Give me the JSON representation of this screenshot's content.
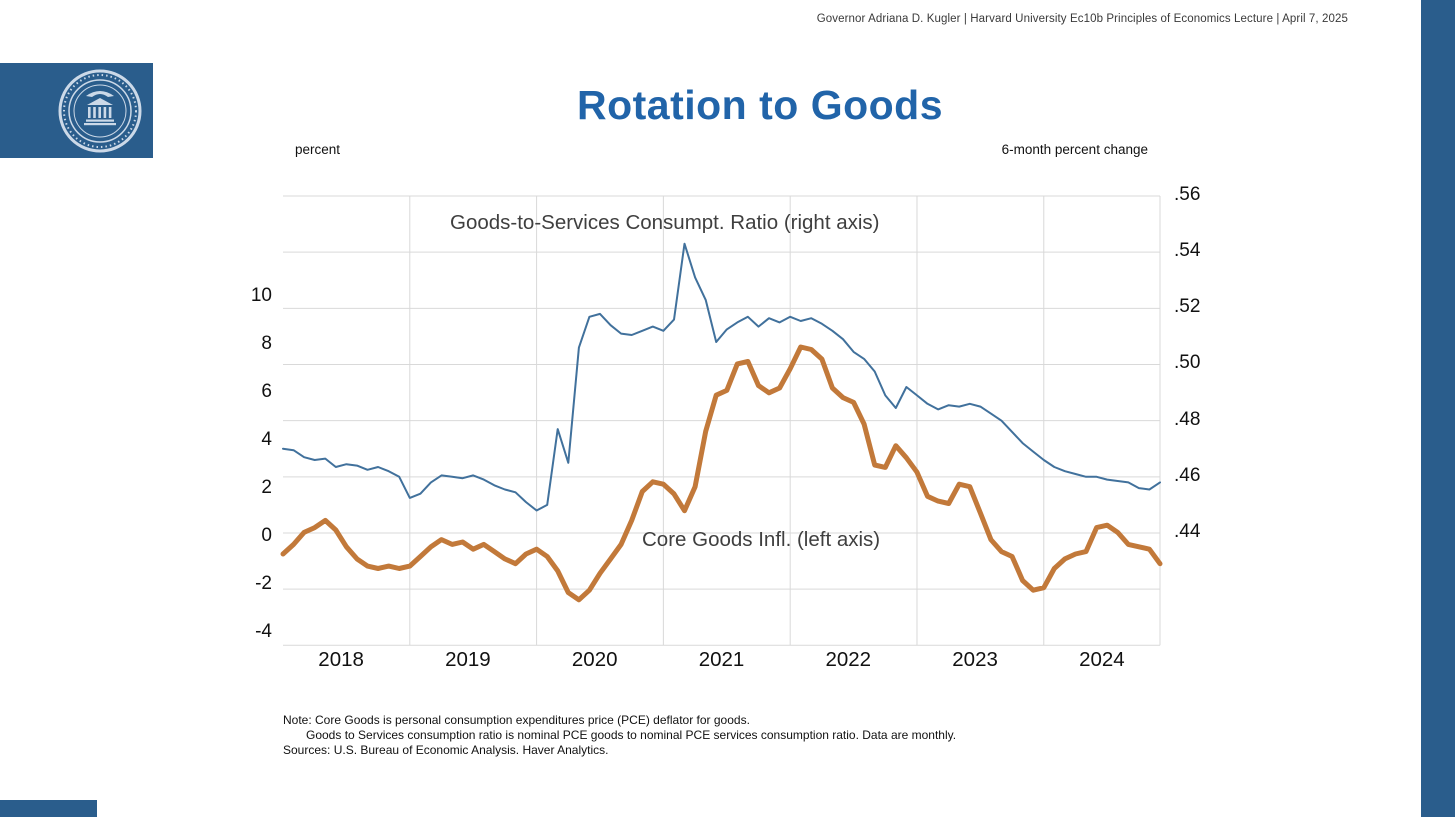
{
  "header": {
    "attribution": "Governor Adriana D. Kugler | Harvard University Ec10b Principles of Economics Lecture | April 7, 2025"
  },
  "title": "Rotation to Goods",
  "annotations": {
    "ratio_label": "Goods-to-Services  Consumpt. Ratio (right axis)",
    "core_label": "Core Goods Infl. (left axis)"
  },
  "notes": {
    "line1": "Note: Core Goods is personal consumption expenditures price (PCE) deflator for goods.",
    "line2": "Goods to Services consumption ratio is nominal PCE goods to nominal PCE services consumption ratio. Data are monthly.",
    "line3": "Sources: U.S. Bureau of Economic Analysis. Haver Analytics."
  },
  "colors": {
    "title_blue": "#2164a9",
    "fed_blue": "#2a5d8c",
    "ratio_line": "#41719c",
    "core_line": "#c2793a",
    "grid": "#d9d9d9"
  },
  "chart_data": {
    "type": "line",
    "title": "Rotation to Goods",
    "frequency": "monthly",
    "x_start": "2018-01",
    "x_year_labels": [
      "2018",
      "2019",
      "2020",
      "2021",
      "2022",
      "2023",
      "2024"
    ],
    "grid": true,
    "grid_color": "#d9d9d9",
    "left_axis": {
      "label": "percent",
      "ticks": [
        10,
        8,
        6,
        4,
        2,
        0,
        -2,
        -4
      ],
      "range": [
        -4,
        12
      ]
    },
    "right_axis": {
      "label": "6-month percent change",
      "ticks": [
        ".56",
        ".54",
        ".52",
        ".50",
        ".48",
        ".46",
        ".44"
      ],
      "range": [
        0.4,
        0.56
      ]
    },
    "series": [
      {
        "name": "Goods-to-Services Consumpt. Ratio (right axis)",
        "axis": "right",
        "color": "#41719c",
        "width": 2,
        "values": [
          0.47,
          0.4695,
          0.467,
          0.466,
          0.4665,
          0.4635,
          0.4645,
          0.464,
          0.4625,
          0.4635,
          0.462,
          0.46,
          0.4525,
          0.454,
          0.458,
          0.4605,
          0.46,
          0.4595,
          0.4605,
          0.459,
          0.457,
          0.4555,
          0.4545,
          0.451,
          0.448,
          0.45,
          0.477,
          0.465,
          0.506,
          0.517,
          0.518,
          0.514,
          0.511,
          0.5105,
          0.512,
          0.5135,
          0.512,
          0.516,
          0.543,
          0.531,
          0.523,
          0.508,
          0.5125,
          0.515,
          0.517,
          0.5135,
          0.5165,
          0.515,
          0.517,
          0.5155,
          0.5165,
          0.5145,
          0.512,
          0.509,
          0.5045,
          0.502,
          0.4975,
          0.489,
          0.4845,
          0.492,
          0.489,
          0.486,
          0.484,
          0.4855,
          0.485,
          0.486,
          0.485,
          0.4825,
          0.48,
          0.476,
          0.472,
          0.469,
          0.466,
          0.4635,
          0.462,
          0.461,
          0.46,
          0.46,
          0.459,
          0.4585,
          0.458,
          0.456,
          0.4555,
          0.458
        ]
      },
      {
        "name": "Core Goods Infl. (left axis)",
        "axis": "left",
        "color": "#c2793a",
        "width": 5,
        "values": [
          -0.7,
          -0.3,
          0.2,
          0.4,
          0.7,
          0.3,
          -0.4,
          -0.9,
          -1.2,
          -1.3,
          -1.2,
          -1.3,
          -1.2,
          -0.8,
          -0.4,
          -0.1,
          -0.3,
          -0.2,
          -0.5,
          -0.3,
          -0.6,
          -0.9,
          -1.1,
          -0.7,
          -0.5,
          -0.8,
          -1.4,
          -2.3,
          -2.6,
          -2.2,
          -1.5,
          -0.9,
          -0.3,
          0.7,
          1.9,
          2.3,
          2.2,
          1.8,
          1.1,
          2.1,
          4.4,
          5.9,
          6.1,
          7.2,
          7.3,
          6.3,
          6.0,
          6.2,
          7.0,
          7.9,
          7.8,
          7.4,
          6.2,
          5.8,
          5.6,
          4.7,
          3.0,
          2.9,
          3.8,
          3.3,
          2.7,
          1.7,
          1.5,
          1.4,
          2.2,
          2.1,
          1.0,
          -0.1,
          -0.6,
          -0.8,
          -1.8,
          -2.2,
          -2.1,
          -1.3,
          -0.9,
          -0.7,
          -0.6,
          0.4,
          0.5,
          0.2,
          -0.3,
          -0.4,
          -0.5,
          -1.1
        ]
      }
    ]
  }
}
